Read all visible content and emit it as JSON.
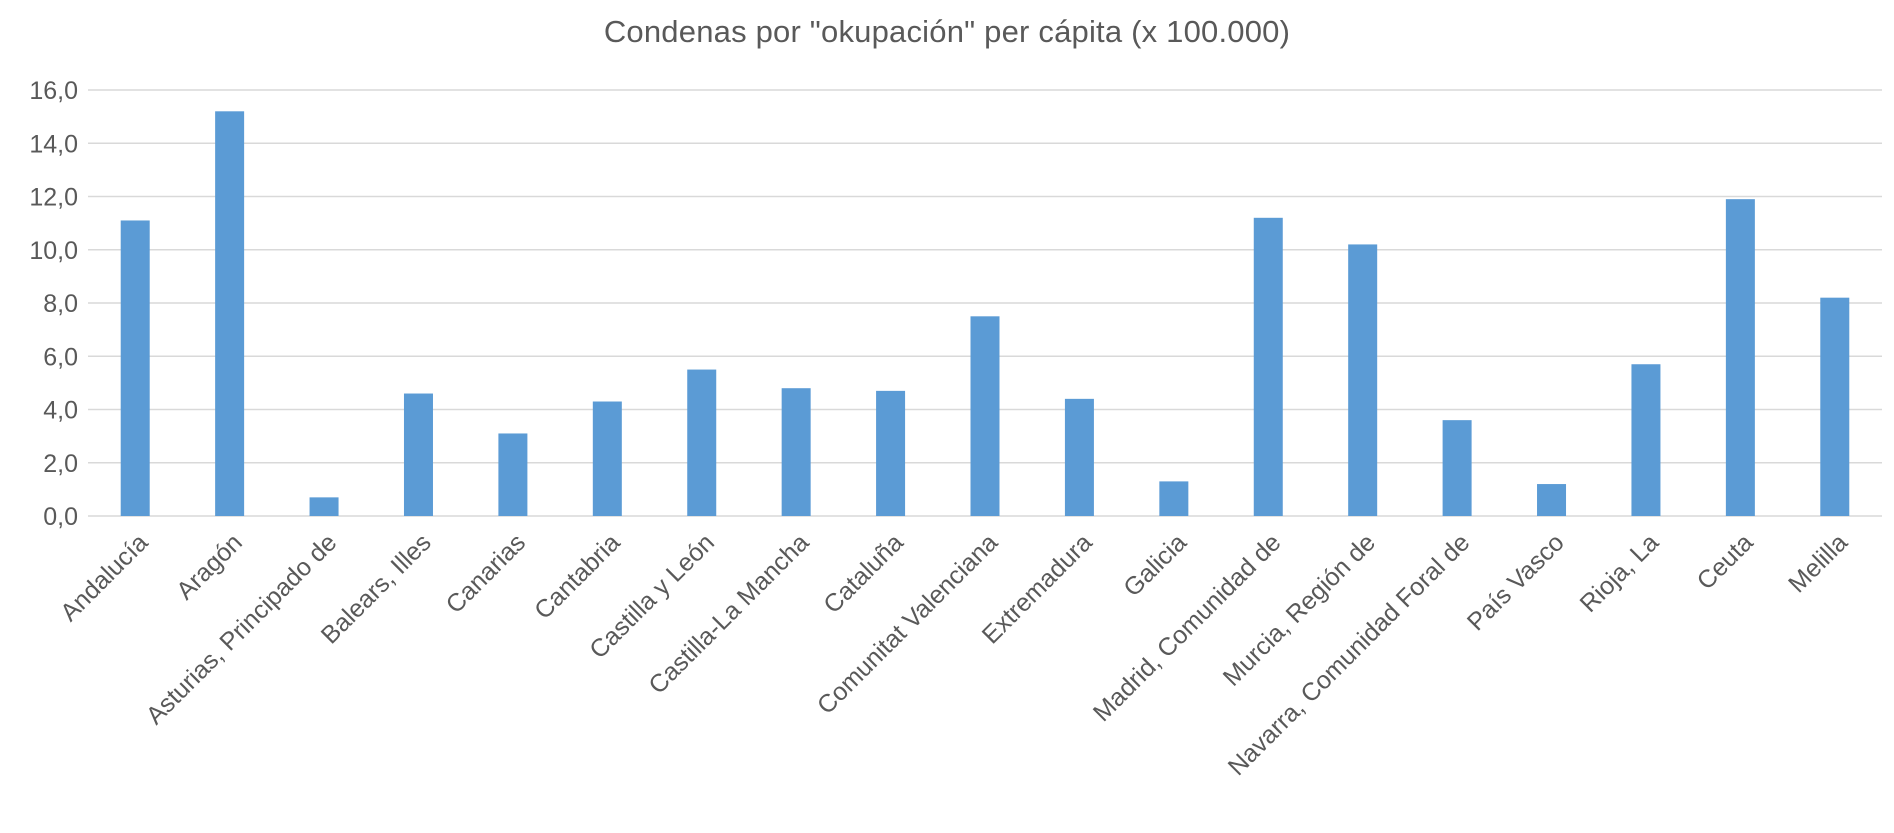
{
  "chart_data": {
    "type": "bar",
    "title": "Condenas por \"okupación\" per cápita (x 100.000)",
    "xlabel": "",
    "ylabel": "",
    "ylim": [
      0,
      16
    ],
    "yticks": [
      "0,0",
      "2,0",
      "4,0",
      "6,0",
      "8,0",
      "10,0",
      "12,0",
      "14,0",
      "16,0"
    ],
    "grid": true,
    "bar_color": "#5b9bd5",
    "categories": [
      "Andalucía",
      "Aragón",
      "Asturias, Principado de",
      "Balears, Illes",
      "Canarias",
      "Cantabria",
      "Castilla y León",
      "Castilla-La Mancha",
      "Cataluña",
      "Comunitat Valenciana",
      "Extremadura",
      "Galicia",
      "Madrid, Comunidad de",
      "Murcia, Región de",
      "Navarra, Comunidad Foral de",
      "País Vasco",
      "Rioja, La",
      "Ceuta",
      "Melilla"
    ],
    "values": [
      11.1,
      15.2,
      0.7,
      4.6,
      3.1,
      4.3,
      5.5,
      4.8,
      4.7,
      7.5,
      4.4,
      1.3,
      11.2,
      10.2,
      3.6,
      1.2,
      5.7,
      11.9,
      8.2
    ]
  }
}
